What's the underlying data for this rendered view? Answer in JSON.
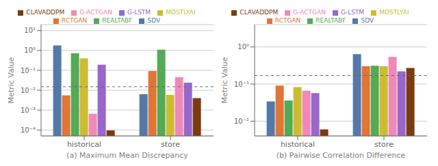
{
  "chart_data": [
    {
      "type": "bar",
      "xlabel": "(a) Maximum Mean Discrepancy",
      "ylabel": "Metric Value",
      "categories": [
        "historical",
        "store"
      ],
      "series": [
        {
          "name": "SDV",
          "color": "#5578aa",
          "values": [
            1.8,
            0.0063
          ]
        },
        {
          "name": "RCTGAN",
          "color": "#e07535",
          "values": [
            0.0055,
            0.092
          ]
        },
        {
          "name": "REALTABF",
          "color": "#55aa55",
          "values": [
            0.72,
            1.1
          ]
        },
        {
          "name": "MOSTLYAI",
          "color": "#ccbb33",
          "values": [
            0.4,
            0.0058
          ]
        },
        {
          "name": "G-ACTGAN",
          "color": "#f088b8",
          "values": [
            0.00065,
            0.045
          ]
        },
        {
          "name": "G-LSTM",
          "color": "#9966cc",
          "values": [
            0.19,
            0.024
          ]
        },
        {
          "name": "CLAVADDPM",
          "color": "#7a3b10",
          "values": [
            9.5e-05,
            0.004
          ]
        }
      ],
      "hline": 0.015,
      "log": "y",
      "ylim": [
        5e-05,
        20.0
      ],
      "yticks": [
        {
          "value": 0.0001,
          "label": "10⁻⁴"
        },
        {
          "value": 0.001,
          "label": "10⁻³"
        },
        {
          "value": 0.01,
          "label": "10⁻²"
        },
        {
          "value": 0.1,
          "label": "10⁻¹"
        },
        {
          "value": 1,
          "label": "10⁰"
        },
        {
          "value": 10,
          "label": "10¹"
        }
      ],
      "grid": true,
      "legend": "top"
    },
    {
      "type": "bar",
      "xlabel": "(b) Pairwise Correlation Difference",
      "ylabel": "Metric Value",
      "categories": [
        "historical",
        "store"
      ],
      "series": [
        {
          "name": "SDV",
          "color": "#5578aa",
          "values": [
            0.034,
            0.64
          ]
        },
        {
          "name": "RCTGAN",
          "color": "#e07535",
          "values": [
            0.091,
            0.3
          ]
        },
        {
          "name": "REALTABF",
          "color": "#55aa55",
          "values": [
            0.036,
            0.31
          ]
        },
        {
          "name": "MOSTLYAI",
          "color": "#ccbb33",
          "values": [
            0.083,
            0.3
          ]
        },
        {
          "name": "G-ACTGAN",
          "color": "#f088b8",
          "values": [
            0.066,
            0.54
          ]
        },
        {
          "name": "G-LSTM",
          "color": "#9966cc",
          "values": [
            0.057,
            0.22
          ]
        },
        {
          "name": "CLAVADDPM",
          "color": "#7a3b10",
          "values": [
            0.006,
            0.27
          ]
        }
      ],
      "hline": 0.17,
      "log": "y",
      "ylim": [
        0.004,
        4.0
      ],
      "yticks": [
        {
          "value": 0.01,
          "label": "10⁻²"
        },
        {
          "value": 0.1,
          "label": "10⁻¹"
        },
        {
          "value": 1,
          "label": "10⁰"
        }
      ],
      "grid": true,
      "legend": "top"
    }
  ]
}
